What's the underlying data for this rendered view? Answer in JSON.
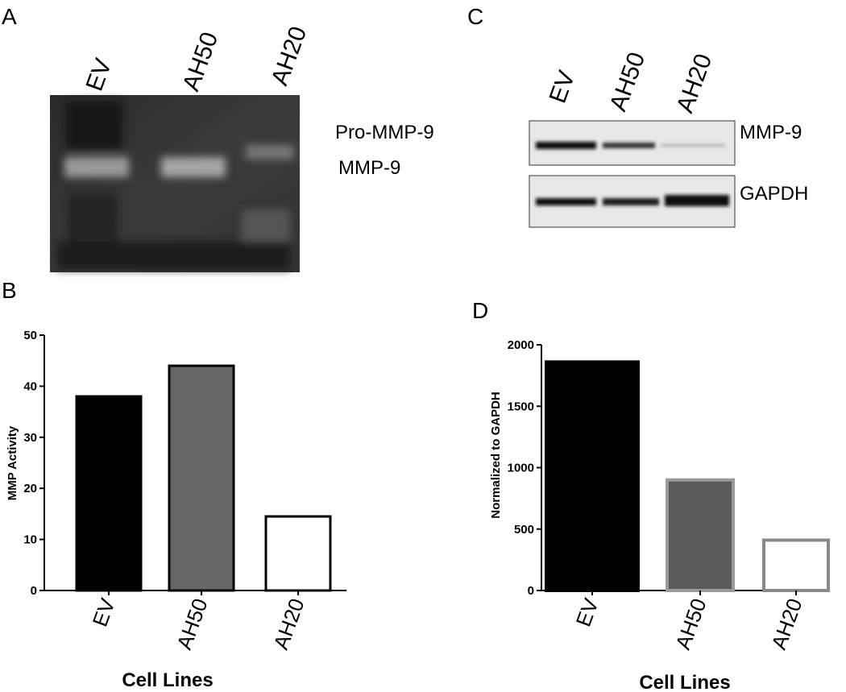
{
  "panel_labels": [
    "A",
    "B",
    "C",
    "D"
  ],
  "gel_a": {
    "lanes": [
      "EV",
      "AH50",
      "AH20"
    ],
    "bands": [
      "Pro-MMP-9",
      "MMP-9"
    ]
  },
  "blot_c": {
    "lanes": [
      "EV",
      "AH50",
      "AH20"
    ],
    "bands": [
      "MMP-9",
      "GAPDH"
    ]
  },
  "chart_data": [
    {
      "type": "bar",
      "ylabel": "MMP Activity",
      "xlabel": "Cell Lines",
      "categories": [
        "EV",
        "AH50",
        "AH20"
      ],
      "values": [
        38,
        44,
        14.5
      ],
      "colors": [
        "#000000",
        "#666666",
        "#ffffff"
      ],
      "edgecolors": [
        "#000000",
        "#000000",
        "#000000"
      ],
      "ylim": [
        0,
        50
      ],
      "yticks": [
        0,
        10,
        20,
        30,
        40,
        50
      ]
    },
    {
      "type": "bar",
      "ylabel": "Normalized to GAPDH",
      "xlabel": "Cell Lines",
      "categories": [
        "EV",
        "AH50",
        "AH20"
      ],
      "values": [
        1860,
        900,
        410
      ],
      "colors": [
        "#000000",
        "#5a5a5a",
        "#ffffff"
      ],
      "edgecolors": [
        "#000000",
        "#9a9a9a",
        "#8a8a8a"
      ],
      "ylim": [
        0,
        2000
      ],
      "yticks": [
        0,
        500,
        1000,
        1500,
        2000
      ]
    }
  ]
}
